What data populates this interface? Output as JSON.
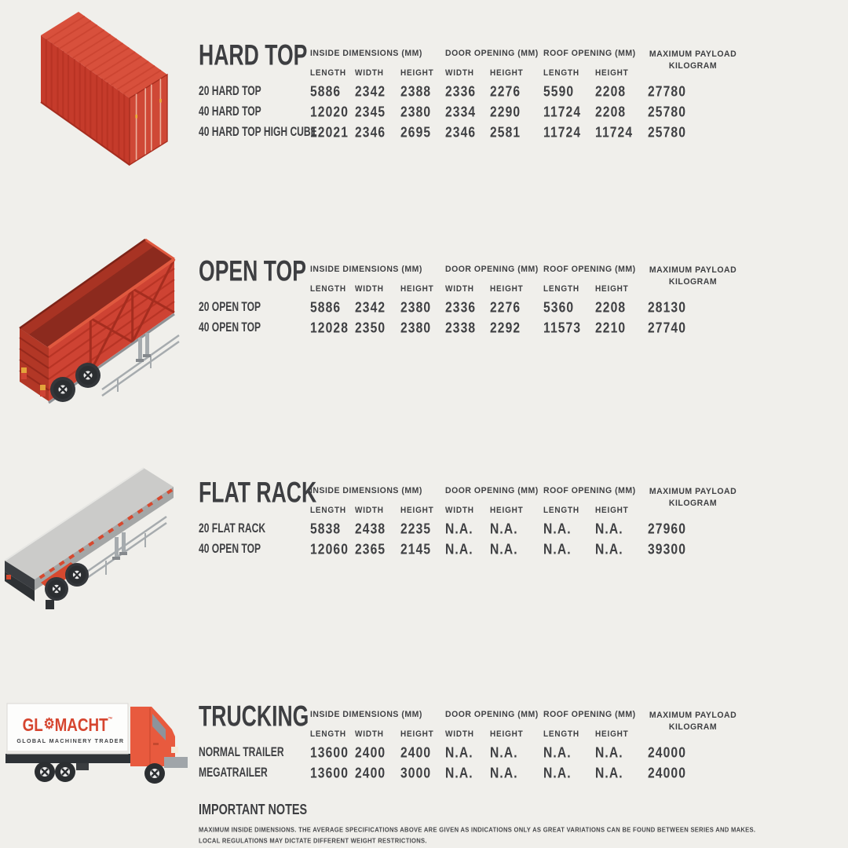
{
  "poster": {
    "background": "#f0efeb",
    "text_color": "#3f4043",
    "container_red": "#c53b2b",
    "logo_red": "#d6452f",
    "cab_orange": "#e85a3e"
  },
  "table_headers": {
    "group1": "INSIDE DIMENSIONS (MM)",
    "group2": "DOOR OPENING (MM)",
    "group3": "ROOF OPENING (MM)",
    "group4_line1": "MAXIMUM PAYLOAD",
    "group4_line2": "KILOGRAM",
    "sub": [
      "LENGTH",
      "WIDTH",
      "HEIGHT",
      "WIDTH",
      "HEIGHT",
      "LENGTH",
      "HEIGHT"
    ]
  },
  "sections": [
    {
      "title": "HARD TOP",
      "illustration": "hard-top-container",
      "rows": [
        {
          "label": "20 HARD TOP",
          "values": [
            "5886",
            "2342",
            "2388",
            "2336",
            "2276",
            "5590",
            "2208",
            "27780"
          ]
        },
        {
          "label": "40 HARD TOP",
          "values": [
            "12020",
            "2345",
            "2380",
            "2334",
            "2290",
            "11724",
            "2208",
            "25780"
          ]
        },
        {
          "label": "40 HARD TOP HIGH CUBE",
          "values": [
            "12021",
            "2346",
            "2695",
            "2346",
            "2581",
            "11724",
            "11724",
            "25780"
          ]
        }
      ]
    },
    {
      "title": "OPEN TOP",
      "illustration": "open-top-trailer",
      "rows": [
        {
          "label": "20 OPEN TOP",
          "values": [
            "5886",
            "2342",
            "2380",
            "2336",
            "2276",
            "5360",
            "2208",
            "28130"
          ]
        },
        {
          "label": "40 OPEN TOP",
          "values": [
            "12028",
            "2350",
            "2380",
            "2338",
            "2292",
            "11573",
            "2210",
            "27740"
          ]
        }
      ]
    },
    {
      "title": "FLAT RACK",
      "illustration": "flat-rack-trailer",
      "rows": [
        {
          "label": "20 FLAT RACK",
          "values": [
            "5838",
            "2438",
            "2235",
            "N.A.",
            "N.A.",
            "N.A.",
            "N.A.",
            "27960"
          ]
        },
        {
          "label": "40 OPEN TOP",
          "values": [
            "12060",
            "2365",
            "2145",
            "N.A.",
            "N.A.",
            "N.A.",
            "N.A.",
            "39300"
          ]
        }
      ]
    },
    {
      "title": "TRUCKING",
      "illustration": "glomacht-truck",
      "rows": [
        {
          "label": "NORMAL TRAILER",
          "values": [
            "13600",
            "2400",
            "2400",
            "N.A.",
            "N.A.",
            "N.A.",
            "N.A.",
            "24000"
          ]
        },
        {
          "label": "MEGATRAILER",
          "values": [
            "13600",
            "2400",
            "3000",
            "N.A.",
            "N.A.",
            "N.A.",
            "N.A.",
            "24000"
          ]
        }
      ]
    }
  ],
  "truck_logo": {
    "prefix": "GL",
    "gear_icon": "⚙",
    "suffix": "MACHT",
    "trademark": "™",
    "tagline": "GLOBAL MACHINERY TRADER"
  },
  "notes": {
    "title": "IMPORTANT NOTES",
    "lines": [
      "MAXIMUM INSIDE DIMENSIONS. THE AVERAGE SPECIFICATIONS ABOVE ARE GIVEN AS INDICATIONS ONLY AS GREAT VARIATIONS CAN BE FOUND BETWEEN SERIES AND MAKES.",
      "LOCAL REGULATIONS MAY DICTATE DIFFERENT WEIGHT RESTRICTIONS."
    ]
  }
}
